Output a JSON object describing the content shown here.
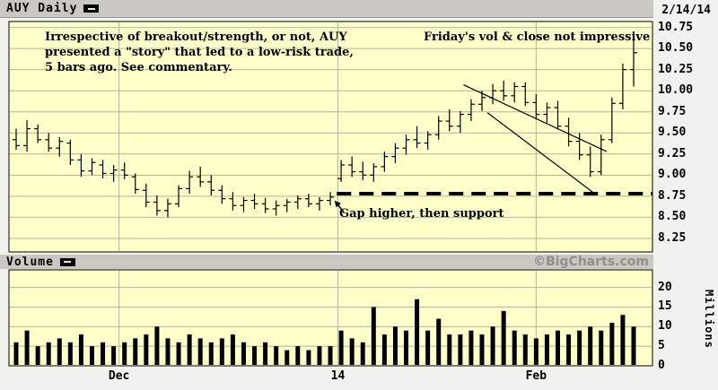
{
  "header": {
    "symbol_label": "AUY Daily",
    "date": "2/14/14"
  },
  "volume_header": {
    "label": "Volume",
    "copyright": "©BigCharts.com"
  },
  "annotations": {
    "commentary_line1": "Irrespective of breakout/strength, or not, AUY",
    "commentary_line2": "presented a \"story\" that led to a low-risk trade,",
    "commentary_line3": "5 bars ago.  See commentary.",
    "friday_note": "Friday's vol & close not impressive",
    "gap_note": "Gap higher, then support"
  },
  "price_axis": {
    "labels": [
      "10.75",
      "10.50",
      "10.25",
      "10.00",
      "9.75",
      "9.50",
      "9.25",
      "9.00",
      "8.75",
      "8.50",
      "8.25"
    ]
  },
  "volume_axis": {
    "labels": [
      "20",
      "15",
      "10",
      "5",
      "0"
    ],
    "unit": "Millions"
  },
  "x_axis": {
    "ticks": [
      {
        "label": "Dec",
        "bar": 9.5
      },
      {
        "label": "14",
        "bar": 29.7
      },
      {
        "label": "Feb",
        "bar": 48
      }
    ]
  },
  "chart_data": {
    "type": "ohlc-with-volume",
    "symbol": "AUY",
    "interval": "Daily",
    "as_of": "2/14/14",
    "price_range": [
      8.25,
      10.75
    ],
    "price_grid_step": 0.25,
    "volume_range_millions": [
      0,
      20
    ],
    "bars_format": [
      "open",
      "high",
      "low",
      "close",
      "volume_millions"
    ],
    "bars": [
      [
        9.42,
        9.55,
        9.3,
        9.35,
        6
      ],
      [
        9.35,
        9.65,
        9.28,
        9.55,
        9
      ],
      [
        9.55,
        9.6,
        9.38,
        9.42,
        5
      ],
      [
        9.42,
        9.5,
        9.28,
        9.32,
        6
      ],
      [
        9.32,
        9.45,
        9.22,
        9.4,
        7
      ],
      [
        9.38,
        9.42,
        9.12,
        9.18,
        6
      ],
      [
        9.18,
        9.25,
        8.98,
        9.05,
        8
      ],
      [
        9.05,
        9.2,
        9.0,
        9.15,
        5
      ],
      [
        9.12,
        9.18,
        8.96,
        9.02,
        6
      ],
      [
        9.02,
        9.12,
        8.92,
        9.06,
        5
      ],
      [
        9.06,
        9.15,
        8.95,
        9.0,
        6
      ],
      [
        8.98,
        9.02,
        8.78,
        8.83,
        7
      ],
      [
        8.82,
        8.9,
        8.62,
        8.68,
        8
      ],
      [
        8.68,
        8.76,
        8.52,
        8.58,
        10
      ],
      [
        8.58,
        8.72,
        8.5,
        8.66,
        7
      ],
      [
        8.66,
        8.88,
        8.62,
        8.84,
        6
      ],
      [
        8.84,
        9.05,
        8.78,
        8.98,
        8
      ],
      [
        8.98,
        9.1,
        8.86,
        8.92,
        7
      ],
      [
        8.92,
        9.0,
        8.76,
        8.82,
        6
      ],
      [
        8.82,
        8.88,
        8.66,
        8.72,
        7
      ],
      [
        8.72,
        8.8,
        8.58,
        8.64,
        8
      ],
      [
        8.64,
        8.74,
        8.56,
        8.7,
        6
      ],
      [
        8.7,
        8.78,
        8.6,
        8.66,
        5
      ],
      [
        8.66,
        8.73,
        8.55,
        8.6,
        6
      ],
      [
        8.6,
        8.7,
        8.52,
        8.64,
        5
      ],
      [
        8.64,
        8.72,
        8.56,
        8.68,
        4
      ],
      [
        8.68,
        8.76,
        8.6,
        8.72,
        5
      ],
      [
        8.72,
        8.78,
        8.62,
        8.66,
        4
      ],
      [
        8.66,
        8.74,
        8.58,
        8.7,
        5
      ],
      [
        8.7,
        8.8,
        8.64,
        8.74,
        5
      ],
      [
        8.96,
        9.18,
        8.92,
        9.12,
        9
      ],
      [
        9.12,
        9.22,
        8.98,
        9.04,
        7
      ],
      [
        9.04,
        9.16,
        8.94,
        9.0,
        6
      ],
      [
        9.0,
        9.14,
        8.92,
        9.1,
        15
      ],
      [
        9.1,
        9.28,
        9.04,
        9.22,
        8
      ],
      [
        9.22,
        9.38,
        9.14,
        9.32,
        10
      ],
      [
        9.32,
        9.48,
        9.24,
        9.42,
        9
      ],
      [
        9.42,
        9.58,
        9.32,
        9.38,
        17
      ],
      [
        9.38,
        9.52,
        9.3,
        9.48,
        9
      ],
      [
        9.48,
        9.7,
        9.42,
        9.64,
        12
      ],
      [
        9.64,
        9.78,
        9.52,
        9.58,
        8
      ],
      [
        9.58,
        9.76,
        9.5,
        9.72,
        8
      ],
      [
        9.72,
        9.9,
        9.64,
        9.84,
        9
      ],
      [
        9.84,
        10.0,
        9.76,
        9.92,
        8
      ],
      [
        9.92,
        10.08,
        9.84,
        10.0,
        10
      ],
      [
        10.0,
        10.12,
        9.88,
        9.94,
        14
      ],
      [
        9.94,
        10.1,
        9.86,
        10.05,
        9
      ],
      [
        10.05,
        10.1,
        9.82,
        9.86,
        8
      ],
      [
        9.86,
        9.96,
        9.66,
        9.72,
        7
      ],
      [
        9.72,
        9.86,
        9.62,
        9.8,
        8
      ],
      [
        9.8,
        9.88,
        9.54,
        9.58,
        9
      ],
      [
        9.58,
        9.68,
        9.34,
        9.4,
        8
      ],
      [
        9.4,
        9.5,
        9.18,
        9.24,
        9
      ],
      [
        9.24,
        9.34,
        8.98,
        9.04,
        10
      ],
      [
        9.04,
        9.48,
        9.0,
        9.42,
        9
      ],
      [
        9.42,
        9.92,
        9.38,
        9.85,
        11
      ],
      [
        9.85,
        10.32,
        9.78,
        10.25,
        13
      ],
      [
        10.25,
        10.68,
        10.05,
        10.45,
        10
      ]
    ],
    "support_line": {
      "price": 8.78,
      "from_bar": 29.6,
      "style": "thick-dashed"
    },
    "trendlines": [
      {
        "from": [
          41.3,
          10.07
        ],
        "to": [
          54.5,
          9.28
        ]
      },
      {
        "from": [
          43.5,
          9.74
        ],
        "to": [
          53.2,
          8.8
        ]
      }
    ],
    "gap_arrow": {
      "from": [
        30.3,
        8.55
      ],
      "to": [
        29.4,
        8.7
      ]
    }
  },
  "colors": {
    "chart_bg": "#ffffca",
    "grid": "#b4b49a",
    "ink": "#000000",
    "header_bg": "#c9c8c3",
    "copyright": "#8f8f8f",
    "page_bg": "#f1f1ee"
  }
}
